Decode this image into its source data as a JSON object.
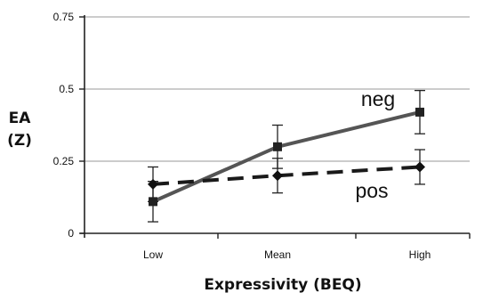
{
  "chart_data": {
    "type": "line",
    "xlabel": "Expressivity (BEQ)",
    "ylabel_lines": [
      "EA",
      "(Z)"
    ],
    "categories": [
      "Low",
      "Mean",
      "High"
    ],
    "ylim": [
      0,
      0.75
    ],
    "yticks": [
      0,
      0.25,
      0.5,
      0.75
    ],
    "ytick_labels": [
      "0",
      "0.25",
      "0.5",
      "0.75"
    ],
    "grid": true,
    "series": [
      {
        "name": "neg",
        "values": [
          0.11,
          0.3,
          0.42
        ],
        "error": [
          0.07,
          0.075,
          0.075
        ],
        "line_style": "solid",
        "marker": "square",
        "color": "#555555"
      },
      {
        "name": "pos",
        "values": [
          0.17,
          0.2,
          0.23
        ],
        "error": [
          0.06,
          0.06,
          0.06
        ],
        "line_style": "dashed",
        "marker": "diamond",
        "color": "#1a1a1a"
      }
    ]
  }
}
